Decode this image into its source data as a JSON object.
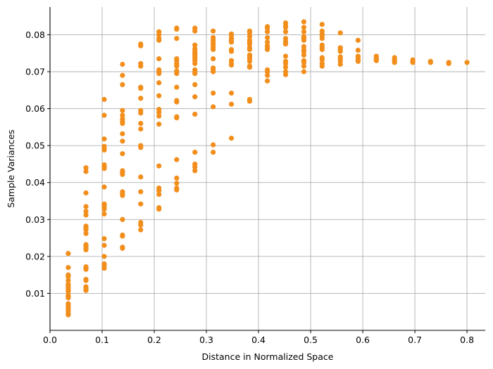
{
  "chart_data": {
    "type": "scatter",
    "title": "",
    "xlabel": "Distance in Normalized Space",
    "ylabel": "Sample Variances",
    "xlim": [
      0.0,
      0.835
    ],
    "ylim": [
      0.0,
      0.0875
    ],
    "xticks": [
      0.0,
      0.1,
      0.2,
      0.3,
      0.4,
      0.5,
      0.6,
      0.7,
      0.8
    ],
    "xtick_labels": [
      "0.0",
      "0.1",
      "0.2",
      "0.3",
      "0.4",
      "0.5",
      "0.6",
      "0.7",
      "0.8"
    ],
    "yticks": [
      0.01,
      0.02,
      0.03,
      0.04,
      0.05,
      0.06,
      0.07,
      0.08
    ],
    "ytick_labels": [
      "0.01",
      "0.02",
      "0.03",
      "0.04",
      "0.05",
      "0.06",
      "0.07",
      "0.08"
    ],
    "grid": true,
    "legend": "none",
    "marker_color": "#f28e1c",
    "series": [
      {
        "points": [
          [
            0.035,
            0.0208
          ],
          [
            0.035,
            0.017
          ],
          [
            0.035,
            0.015
          ],
          [
            0.035,
            0.0145
          ],
          [
            0.035,
            0.0135
          ],
          [
            0.035,
            0.0125
          ],
          [
            0.035,
            0.012
          ],
          [
            0.035,
            0.0115
          ],
          [
            0.035,
            0.011
          ],
          [
            0.035,
            0.0105
          ],
          [
            0.035,
            0.0095
          ],
          [
            0.035,
            0.0092
          ],
          [
            0.035,
            0.0088
          ],
          [
            0.035,
            0.0072
          ],
          [
            0.035,
            0.0068
          ],
          [
            0.035,
            0.0062
          ],
          [
            0.035,
            0.0058
          ],
          [
            0.035,
            0.0052
          ],
          [
            0.035,
            0.0045
          ],
          [
            0.035,
            0.0042
          ],
          [
            0.069,
            0.044
          ],
          [
            0.069,
            0.043
          ],
          [
            0.069,
            0.0372
          ],
          [
            0.069,
            0.0335
          ],
          [
            0.069,
            0.0322
          ],
          [
            0.069,
            0.0312
          ],
          [
            0.069,
            0.0282
          ],
          [
            0.069,
            0.0278
          ],
          [
            0.069,
            0.0272
          ],
          [
            0.069,
            0.0262
          ],
          [
            0.069,
            0.0232
          ],
          [
            0.069,
            0.0228
          ],
          [
            0.069,
            0.0222
          ],
          [
            0.069,
            0.0218
          ],
          [
            0.069,
            0.0172
          ],
          [
            0.069,
            0.0168
          ],
          [
            0.069,
            0.0165
          ],
          [
            0.069,
            0.0138
          ],
          [
            0.069,
            0.0135
          ],
          [
            0.069,
            0.0118
          ],
          [
            0.069,
            0.0112
          ],
          [
            0.069,
            0.0108
          ],
          [
            0.104,
            0.0625
          ],
          [
            0.104,
            0.0582
          ],
          [
            0.104,
            0.0518
          ],
          [
            0.104,
            0.0498
          ],
          [
            0.104,
            0.0492
          ],
          [
            0.104,
            0.0488
          ],
          [
            0.104,
            0.0448
          ],
          [
            0.104,
            0.0442
          ],
          [
            0.104,
            0.0438
          ],
          [
            0.104,
            0.0388
          ],
          [
            0.104,
            0.0342
          ],
          [
            0.104,
            0.0338
          ],
          [
            0.104,
            0.0332
          ],
          [
            0.104,
            0.0328
          ],
          [
            0.104,
            0.0315
          ],
          [
            0.104,
            0.0248
          ],
          [
            0.104,
            0.023
          ],
          [
            0.104,
            0.02
          ],
          [
            0.104,
            0.018
          ],
          [
            0.104,
            0.0175
          ],
          [
            0.104,
            0.0168
          ],
          [
            0.139,
            0.072
          ],
          [
            0.139,
            0.069
          ],
          [
            0.139,
            0.0665
          ],
          [
            0.139,
            0.0595
          ],
          [
            0.139,
            0.0582
          ],
          [
            0.139,
            0.0572
          ],
          [
            0.139,
            0.0565
          ],
          [
            0.139,
            0.056
          ],
          [
            0.139,
            0.0532
          ],
          [
            0.139,
            0.0512
          ],
          [
            0.139,
            0.0478
          ],
          [
            0.139,
            0.0432
          ],
          [
            0.139,
            0.0428
          ],
          [
            0.139,
            0.0422
          ],
          [
            0.139,
            0.0375
          ],
          [
            0.139,
            0.037
          ],
          [
            0.139,
            0.0365
          ],
          [
            0.139,
            0.03
          ],
          [
            0.139,
            0.0258
          ],
          [
            0.139,
            0.0255
          ],
          [
            0.139,
            0.0225
          ],
          [
            0.139,
            0.0222
          ],
          [
            0.174,
            0.0775
          ],
          [
            0.174,
            0.077
          ],
          [
            0.174,
            0.0722
          ],
          [
            0.174,
            0.0715
          ],
          [
            0.174,
            0.0658
          ],
          [
            0.174,
            0.0655
          ],
          [
            0.174,
            0.0628
          ],
          [
            0.174,
            0.0595
          ],
          [
            0.174,
            0.0588
          ],
          [
            0.174,
            0.056
          ],
          [
            0.174,
            0.0545
          ],
          [
            0.174,
            0.05
          ],
          [
            0.174,
            0.0495
          ],
          [
            0.174,
            0.0415
          ],
          [
            0.174,
            0.0375
          ],
          [
            0.174,
            0.0342
          ],
          [
            0.174,
            0.0292
          ],
          [
            0.174,
            0.0285
          ],
          [
            0.174,
            0.0272
          ],
          [
            0.209,
            0.0808
          ],
          [
            0.209,
            0.08
          ],
          [
            0.209,
            0.079
          ],
          [
            0.209,
            0.0785
          ],
          [
            0.209,
            0.0735
          ],
          [
            0.209,
            0.0705
          ],
          [
            0.209,
            0.07
          ],
          [
            0.209,
            0.0695
          ],
          [
            0.209,
            0.067
          ],
          [
            0.209,
            0.0635
          ],
          [
            0.209,
            0.0598
          ],
          [
            0.209,
            0.059
          ],
          [
            0.209,
            0.058
          ],
          [
            0.209,
            0.0558
          ],
          [
            0.209,
            0.0445
          ],
          [
            0.209,
            0.0385
          ],
          [
            0.209,
            0.0378
          ],
          [
            0.209,
            0.0368
          ],
          [
            0.209,
            0.0332
          ],
          [
            0.209,
            0.0328
          ],
          [
            0.243,
            0.0818
          ],
          [
            0.243,
            0.0815
          ],
          [
            0.243,
            0.079
          ],
          [
            0.243,
            0.0735
          ],
          [
            0.243,
            0.073
          ],
          [
            0.243,
            0.0722
          ],
          [
            0.243,
            0.0718
          ],
          [
            0.243,
            0.0715
          ],
          [
            0.243,
            0.0702
          ],
          [
            0.243,
            0.0695
          ],
          [
            0.243,
            0.0658
          ],
          [
            0.243,
            0.0622
          ],
          [
            0.243,
            0.0618
          ],
          [
            0.243,
            0.0578
          ],
          [
            0.243,
            0.0575
          ],
          [
            0.243,
            0.0462
          ],
          [
            0.243,
            0.0412
          ],
          [
            0.243,
            0.0398
          ],
          [
            0.243,
            0.0385
          ],
          [
            0.243,
            0.038
          ],
          [
            0.278,
            0.0818
          ],
          [
            0.278,
            0.081
          ],
          [
            0.278,
            0.0772
          ],
          [
            0.278,
            0.0762
          ],
          [
            0.278,
            0.0755
          ],
          [
            0.278,
            0.075
          ],
          [
            0.278,
            0.0745
          ],
          [
            0.278,
            0.074
          ],
          [
            0.278,
            0.0735
          ],
          [
            0.278,
            0.073
          ],
          [
            0.278,
            0.0722
          ],
          [
            0.278,
            0.0705
          ],
          [
            0.278,
            0.07
          ],
          [
            0.278,
            0.0695
          ],
          [
            0.278,
            0.0665
          ],
          [
            0.278,
            0.0632
          ],
          [
            0.278,
            0.0585
          ],
          [
            0.278,
            0.0482
          ],
          [
            0.278,
            0.045
          ],
          [
            0.278,
            0.0442
          ],
          [
            0.278,
            0.0432
          ],
          [
            0.313,
            0.081
          ],
          [
            0.313,
            0.0792
          ],
          [
            0.313,
            0.0785
          ],
          [
            0.313,
            0.0778
          ],
          [
            0.313,
            0.0772
          ],
          [
            0.313,
            0.0765
          ],
          [
            0.313,
            0.076
          ],
          [
            0.313,
            0.0735
          ],
          [
            0.313,
            0.071
          ],
          [
            0.313,
            0.0705
          ],
          [
            0.313,
            0.07
          ],
          [
            0.313,
            0.0642
          ],
          [
            0.313,
            0.0605
          ],
          [
            0.313,
            0.0502
          ],
          [
            0.313,
            0.0482
          ],
          [
            0.348,
            0.0802
          ],
          [
            0.348,
            0.0798
          ],
          [
            0.348,
            0.079
          ],
          [
            0.348,
            0.0785
          ],
          [
            0.348,
            0.078
          ],
          [
            0.348,
            0.076
          ],
          [
            0.348,
            0.0755
          ],
          [
            0.348,
            0.073
          ],
          [
            0.348,
            0.0722
          ],
          [
            0.348,
            0.0718
          ],
          [
            0.348,
            0.0642
          ],
          [
            0.348,
            0.0612
          ],
          [
            0.348,
            0.052
          ],
          [
            0.383,
            0.081
          ],
          [
            0.383,
            0.0805
          ],
          [
            0.383,
            0.0795
          ],
          [
            0.383,
            0.0785
          ],
          [
            0.383,
            0.078
          ],
          [
            0.383,
            0.0775
          ],
          [
            0.383,
            0.0765
          ],
          [
            0.383,
            0.076
          ],
          [
            0.383,
            0.0745
          ],
          [
            0.383,
            0.074
          ],
          [
            0.383,
            0.0735
          ],
          [
            0.383,
            0.0728
          ],
          [
            0.383,
            0.0715
          ],
          [
            0.383,
            0.0712
          ],
          [
            0.383,
            0.0625
          ],
          [
            0.383,
            0.062
          ],
          [
            0.417,
            0.0822
          ],
          [
            0.417,
            0.0818
          ],
          [
            0.417,
            0.0808
          ],
          [
            0.417,
            0.0792
          ],
          [
            0.417,
            0.078
          ],
          [
            0.417,
            0.077
          ],
          [
            0.417,
            0.0765
          ],
          [
            0.417,
            0.076
          ],
          [
            0.417,
            0.0705
          ],
          [
            0.417,
            0.07
          ],
          [
            0.417,
            0.069
          ],
          [
            0.417,
            0.0675
          ],
          [
            0.452,
            0.0832
          ],
          [
            0.452,
            0.0825
          ],
          [
            0.452,
            0.082
          ],
          [
            0.452,
            0.0808
          ],
          [
            0.452,
            0.079
          ],
          [
            0.452,
            0.0782
          ],
          [
            0.452,
            0.0778
          ],
          [
            0.452,
            0.0775
          ],
          [
            0.452,
            0.0742
          ],
          [
            0.452,
            0.0728
          ],
          [
            0.452,
            0.0722
          ],
          [
            0.452,
            0.0712
          ],
          [
            0.452,
            0.07
          ],
          [
            0.452,
            0.0692
          ],
          [
            0.487,
            0.0835
          ],
          [
            0.487,
            0.082
          ],
          [
            0.487,
            0.0808
          ],
          [
            0.487,
            0.0795
          ],
          [
            0.487,
            0.079
          ],
          [
            0.487,
            0.0785
          ],
          [
            0.487,
            0.0768
          ],
          [
            0.487,
            0.076
          ],
          [
            0.487,
            0.0755
          ],
          [
            0.487,
            0.0745
          ],
          [
            0.487,
            0.073
          ],
          [
            0.487,
            0.0725
          ],
          [
            0.487,
            0.0715
          ],
          [
            0.487,
            0.07
          ],
          [
            0.522,
            0.0828
          ],
          [
            0.522,
            0.081
          ],
          [
            0.522,
            0.0802
          ],
          [
            0.522,
            0.0798
          ],
          [
            0.522,
            0.079
          ],
          [
            0.522,
            0.0772
          ],
          [
            0.522,
            0.0765
          ],
          [
            0.522,
            0.076
          ],
          [
            0.522,
            0.0738
          ],
          [
            0.522,
            0.0732
          ],
          [
            0.522,
            0.0722
          ],
          [
            0.522,
            0.0715
          ],
          [
            0.557,
            0.0805
          ],
          [
            0.557,
            0.0765
          ],
          [
            0.557,
            0.076
          ],
          [
            0.557,
            0.0755
          ],
          [
            0.557,
            0.074
          ],
          [
            0.557,
            0.0735
          ],
          [
            0.557,
            0.0728
          ],
          [
            0.557,
            0.072
          ],
          [
            0.591,
            0.0785
          ],
          [
            0.591,
            0.0758
          ],
          [
            0.591,
            0.0742
          ],
          [
            0.591,
            0.0738
          ],
          [
            0.591,
            0.0732
          ],
          [
            0.591,
            0.0728
          ],
          [
            0.626,
            0.0742
          ],
          [
            0.626,
            0.0738
          ],
          [
            0.626,
            0.0735
          ],
          [
            0.626,
            0.0732
          ],
          [
            0.626,
            0.073
          ],
          [
            0.661,
            0.0738
          ],
          [
            0.661,
            0.0732
          ],
          [
            0.661,
            0.0728
          ],
          [
            0.661,
            0.0725
          ],
          [
            0.696,
            0.0732
          ],
          [
            0.696,
            0.0728
          ],
          [
            0.696,
            0.0725
          ],
          [
            0.73,
            0.0728
          ],
          [
            0.73,
            0.0725
          ],
          [
            0.765,
            0.0725
          ],
          [
            0.765,
            0.0722
          ],
          [
            0.8,
            0.0725
          ]
        ]
      }
    ]
  }
}
